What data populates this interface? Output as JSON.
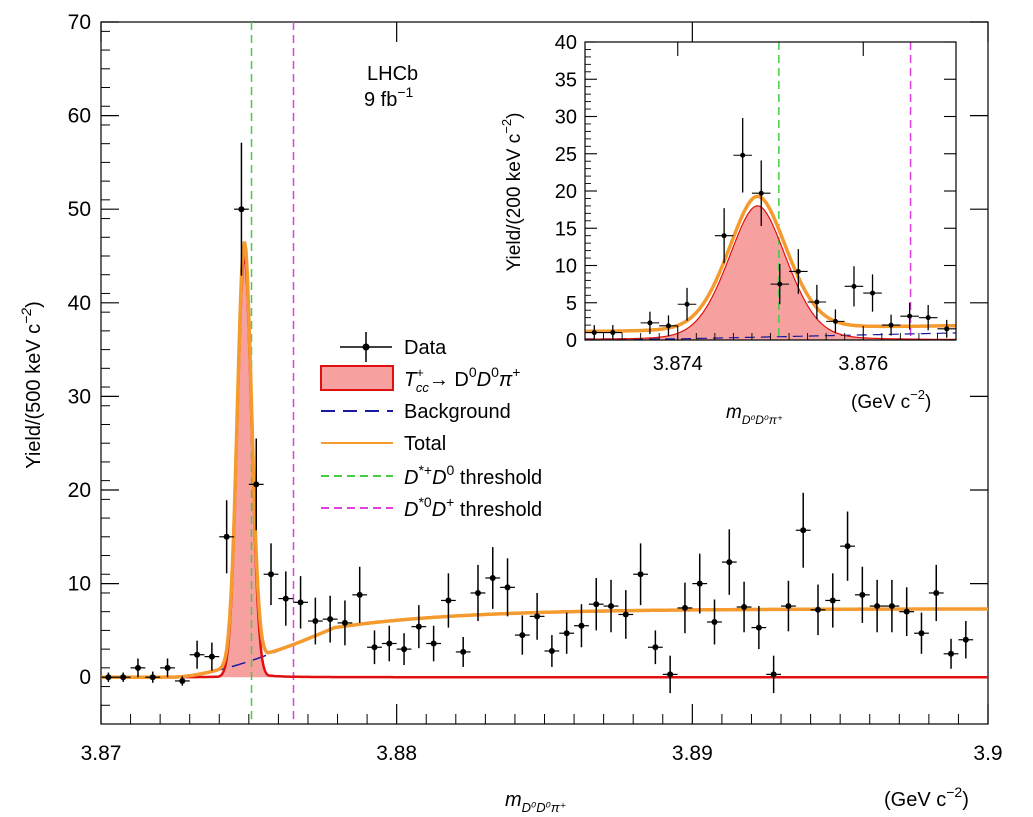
{
  "chart_data": [
    {
      "id": "main",
      "type": "scatter",
      "experiment": "LHCb",
      "luminosity": {
        "base": "9 fb",
        "sup": "−1"
      },
      "xlim": [
        3.87,
        3.9
      ],
      "ylim": [
        -5,
        70
      ],
      "x_ticks": [
        "3.87",
        "3.88",
        "3.89",
        "3.9"
      ],
      "x_tick_values": [
        3.87,
        3.88,
        3.89,
        3.9
      ],
      "y_ticks": [
        "0",
        "10",
        "20",
        "30",
        "40",
        "50",
        "60",
        "70"
      ],
      "y_tick_values": [
        0,
        10,
        20,
        30,
        40,
        50,
        60,
        70
      ],
      "xlabel": {
        "m": "m",
        "sub": "D⁰D⁰π⁺",
        "unit": "(GeV c",
        "unit_sup": "−2",
        "unit_end": ")"
      },
      "ylabel": {
        "base": "Yield/(500 keV c",
        "sup": "−2",
        "end": ")"
      },
      "thresholds": [
        {
          "name": "D*+D0 threshold",
          "x": 3.87509,
          "color": "#44cc44"
        },
        {
          "name": "D*0D+ threshold",
          "x": 3.87651,
          "color": "#e040e0"
        }
      ],
      "data": [
        {
          "x": 3.87025,
          "y": 0,
          "err": 0.5
        },
        {
          "x": 3.87075,
          "y": 0,
          "err": 0.5
        },
        {
          "x": 3.87125,
          "y": 1.0,
          "err": 1.0
        },
        {
          "x": 3.87175,
          "y": 0,
          "err": 0.6
        },
        {
          "x": 3.87225,
          "y": 1.0,
          "err": 1.0
        },
        {
          "x": 3.87275,
          "y": -0.4,
          "err": 0.5
        },
        {
          "x": 3.87325,
          "y": 2.4,
          "err": 1.5
        },
        {
          "x": 3.87375,
          "y": 2.2,
          "err": 1.5
        },
        {
          "x": 3.87425,
          "y": 15.0,
          "err": 3.9
        },
        {
          "x": 3.87475,
          "y": 50.0,
          "err": 7.1
        },
        {
          "x": 3.87525,
          "y": 20.6,
          "err": 4.9
        },
        {
          "x": 3.87575,
          "y": 11.0,
          "err": 3.3
        },
        {
          "x": 3.87625,
          "y": 8.4,
          "err": 2.9
        },
        {
          "x": 3.87675,
          "y": 8.0,
          "err": 2.8
        },
        {
          "x": 3.87725,
          "y": 6.0,
          "err": 2.5
        },
        {
          "x": 3.87775,
          "y": 6.2,
          "err": 2.5
        },
        {
          "x": 3.87825,
          "y": 5.8,
          "err": 2.4
        },
        {
          "x": 3.87875,
          "y": 8.8,
          "err": 3.0
        },
        {
          "x": 3.87925,
          "y": 3.2,
          "err": 1.8
        },
        {
          "x": 3.87975,
          "y": 3.6,
          "err": 1.9
        },
        {
          "x": 3.88025,
          "y": 3.0,
          "err": 1.7
        },
        {
          "x": 3.88075,
          "y": 5.4,
          "err": 2.3
        },
        {
          "x": 3.88125,
          "y": 3.6,
          "err": 1.9
        },
        {
          "x": 3.88175,
          "y": 8.2,
          "err": 2.9
        },
        {
          "x": 3.88225,
          "y": 2.7,
          "err": 1.6
        },
        {
          "x": 3.88275,
          "y": 9.0,
          "err": 3.0
        },
        {
          "x": 3.88325,
          "y": 10.6,
          "err": 3.3
        },
        {
          "x": 3.88375,
          "y": 9.6,
          "err": 3.1
        },
        {
          "x": 3.88425,
          "y": 4.5,
          "err": 2.1
        },
        {
          "x": 3.88475,
          "y": 6.5,
          "err": 2.5
        },
        {
          "x": 3.88525,
          "y": 2.8,
          "err": 1.7
        },
        {
          "x": 3.88575,
          "y": 4.7,
          "err": 2.2
        },
        {
          "x": 3.88625,
          "y": 5.5,
          "err": 2.3
        },
        {
          "x": 3.88675,
          "y": 7.8,
          "err": 2.8
        },
        {
          "x": 3.88725,
          "y": 7.6,
          "err": 2.8
        },
        {
          "x": 3.88775,
          "y": 6.7,
          "err": 2.6
        },
        {
          "x": 3.88825,
          "y": 11.0,
          "err": 3.3
        },
        {
          "x": 3.88875,
          "y": 3.2,
          "err": 1.8
        },
        {
          "x": 3.88925,
          "y": 0.3,
          "err": 2.0
        },
        {
          "x": 3.88975,
          "y": 7.4,
          "err": 2.7
        },
        {
          "x": 3.89025,
          "y": 10.0,
          "err": 3.2
        },
        {
          "x": 3.89075,
          "y": 5.9,
          "err": 2.4
        },
        {
          "x": 3.89125,
          "y": 12.3,
          "err": 3.5
        },
        {
          "x": 3.89175,
          "y": 7.5,
          "err": 2.7
        },
        {
          "x": 3.89225,
          "y": 5.3,
          "err": 2.3
        },
        {
          "x": 3.89275,
          "y": 0.3,
          "err": 2.0
        },
        {
          "x": 3.89325,
          "y": 7.6,
          "err": 2.7
        },
        {
          "x": 3.89375,
          "y": 15.7,
          "err": 4.0
        },
        {
          "x": 3.89425,
          "y": 7.2,
          "err": 2.7
        },
        {
          "x": 3.89475,
          "y": 8.2,
          "err": 2.9
        },
        {
          "x": 3.89525,
          "y": 14.0,
          "err": 3.7
        },
        {
          "x": 3.89575,
          "y": 8.8,
          "err": 3.0
        },
        {
          "x": 3.89625,
          "y": 7.6,
          "err": 2.8
        },
        {
          "x": 3.89675,
          "y": 7.6,
          "err": 2.8
        },
        {
          "x": 3.89725,
          "y": 7.0,
          "err": 2.6
        },
        {
          "x": 3.89775,
          "y": 4.7,
          "err": 2.2
        },
        {
          "x": 3.89825,
          "y": 9.0,
          "err": 3.0
        },
        {
          "x": 3.89875,
          "y": 2.5,
          "err": 1.6
        },
        {
          "x": 3.89925,
          "y": 4.0,
          "err": 2.0
        }
      ],
      "legend": {
        "data_label": "Data",
        "signal_prefix": "T",
        "signal_sup": "+",
        "signal_sub": "cc",
        "signal_arrow": "→ D",
        "signal_d0": "0",
        "signal_d2": "D",
        "signal_d0b": "0",
        "signal_pi": "π",
        "signal_pisup": "+",
        "background_label": "Background",
        "total_label": "Total",
        "thr1_a": "D",
        "thr1_a_sup": "*+",
        "thr1_b": "D",
        "thr1_b_sup": "0",
        "thr1_c": " threshold",
        "thr2_a": "D",
        "thr2_a_sup": "*0",
        "thr2_b": "D",
        "thr2_b_sup": "+",
        "thr2_c": " threshold"
      },
      "colors": {
        "signal_fill": "#f7a0a0",
        "signal_line": "#e01010",
        "background": "#1a1aa0",
        "total": "#f59a2e",
        "data": "#000000"
      }
    },
    {
      "id": "inset",
      "type": "scatter",
      "xlim": [
        3.873,
        3.877
      ],
      "ylim": [
        0,
        40
      ],
      "x_ticks": [
        "3.874",
        "3.876"
      ],
      "x_tick_values": [
        3.874,
        3.876
      ],
      "y_ticks": [
        "0",
        "5",
        "10",
        "15",
        "20",
        "25",
        "30",
        "35",
        "40"
      ],
      "y_tick_values": [
        0,
        5,
        10,
        15,
        20,
        25,
        30,
        35,
        40
      ],
      "xlabel": {
        "m": "m",
        "sub": "D⁰D⁰π⁺",
        "unit": "(GeV c",
        "unit_sup": "−2",
        "unit_end": ")"
      },
      "ylabel": {
        "base": "Yield/(200 keV c",
        "sup": "−2",
        "end": ")"
      },
      "data": [
        {
          "x": 3.8731,
          "y": 1.0,
          "err": 1.0
        },
        {
          "x": 3.8733,
          "y": 1.0,
          "err": 1.0
        },
        {
          "x": 3.8737,
          "y": 2.3,
          "err": 1.5
        },
        {
          "x": 3.8739,
          "y": 1.9,
          "err": 1.4
        },
        {
          "x": 3.8741,
          "y": 4.8,
          "err": 2.2
        },
        {
          "x": 3.8745,
          "y": 14.0,
          "err": 3.7
        },
        {
          "x": 3.8747,
          "y": 24.8,
          "err": 5.0
        },
        {
          "x": 3.8749,
          "y": 19.7,
          "err": 4.4
        },
        {
          "x": 3.8751,
          "y": 7.5,
          "err": 2.7
        },
        {
          "x": 3.8753,
          "y": 9.2,
          "err": 3.0
        },
        {
          "x": 3.8755,
          "y": 5.1,
          "err": 2.3
        },
        {
          "x": 3.8757,
          "y": 2.5,
          "err": 1.6
        },
        {
          "x": 3.8759,
          "y": 7.2,
          "err": 2.7
        },
        {
          "x": 3.8761,
          "y": 6.3,
          "err": 2.5
        },
        {
          "x": 3.8763,
          "y": 2.0,
          "err": 1.4
        },
        {
          "x": 3.8765,
          "y": 3.2,
          "err": 1.8
        },
        {
          "x": 3.8767,
          "y": 3.0,
          "err": 1.7
        },
        {
          "x": 3.8769,
          "y": 1.5,
          "err": 1.2
        }
      ],
      "thresholds": [
        {
          "name": "D*+D0 threshold",
          "x": 3.87509,
          "color": "#44cc44"
        },
        {
          "name": "D*0D+ threshold",
          "x": 3.87651,
          "color": "#e040e0"
        }
      ]
    }
  ]
}
